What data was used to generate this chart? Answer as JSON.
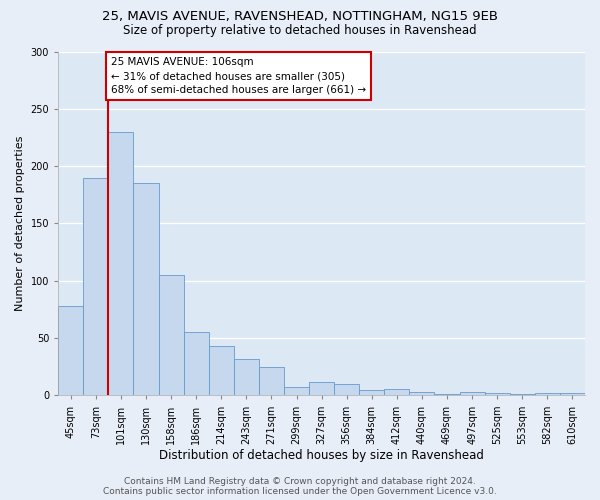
{
  "title_line1": "25, MAVIS AVENUE, RAVENSHEAD, NOTTINGHAM, NG15 9EB",
  "title_line2": "Size of property relative to detached houses in Ravenshead",
  "xlabel": "Distribution of detached houses by size in Ravenshead",
  "ylabel": "Number of detached properties",
  "bar_heights": [
    78,
    190,
    230,
    185,
    105,
    55,
    43,
    32,
    25,
    7,
    12,
    10,
    5,
    6,
    3,
    1,
    3,
    2,
    1,
    2,
    2
  ],
  "x_labels": [
    "45sqm",
    "73sqm",
    "101sqm",
    "130sqm",
    "158sqm",
    "186sqm",
    "214sqm",
    "243sqm",
    "271sqm",
    "299sqm",
    "327sqm",
    "356sqm",
    "384sqm",
    "412sqm",
    "440sqm",
    "469sqm",
    "497sqm",
    "525sqm",
    "553sqm",
    "582sqm",
    "610sqm"
  ],
  "bar_color": "#c5d8ee",
  "bar_edge_color": "#6699cc",
  "highlight_line_index": 2,
  "highlight_line_color": "#cc0000",
  "annotation_text": "25 MAVIS AVENUE: 106sqm\n← 31% of detached houses are smaller (305)\n68% of semi-detached houses are larger (661) →",
  "annotation_box_facecolor": "#ffffff",
  "annotation_box_edgecolor": "#cc0000",
  "ylim_max": 300,
  "yticks": [
    0,
    50,
    100,
    150,
    200,
    250,
    300
  ],
  "footer_line1": "Contains HM Land Registry data © Crown copyright and database right 2024.",
  "footer_line2": "Contains public sector information licensed under the Open Government Licence v3.0.",
  "plot_bg_color": "#dde8f5",
  "fig_bg_color": "#e8eef8",
  "grid_color": "#ffffff",
  "title_fontsize": 9.5,
  "subtitle_fontsize": 8.5,
  "ylabel_fontsize": 8,
  "xlabel_fontsize": 8.5,
  "tick_fontsize": 7,
  "annotation_fontsize": 7.5,
  "footer_fontsize": 6.5
}
